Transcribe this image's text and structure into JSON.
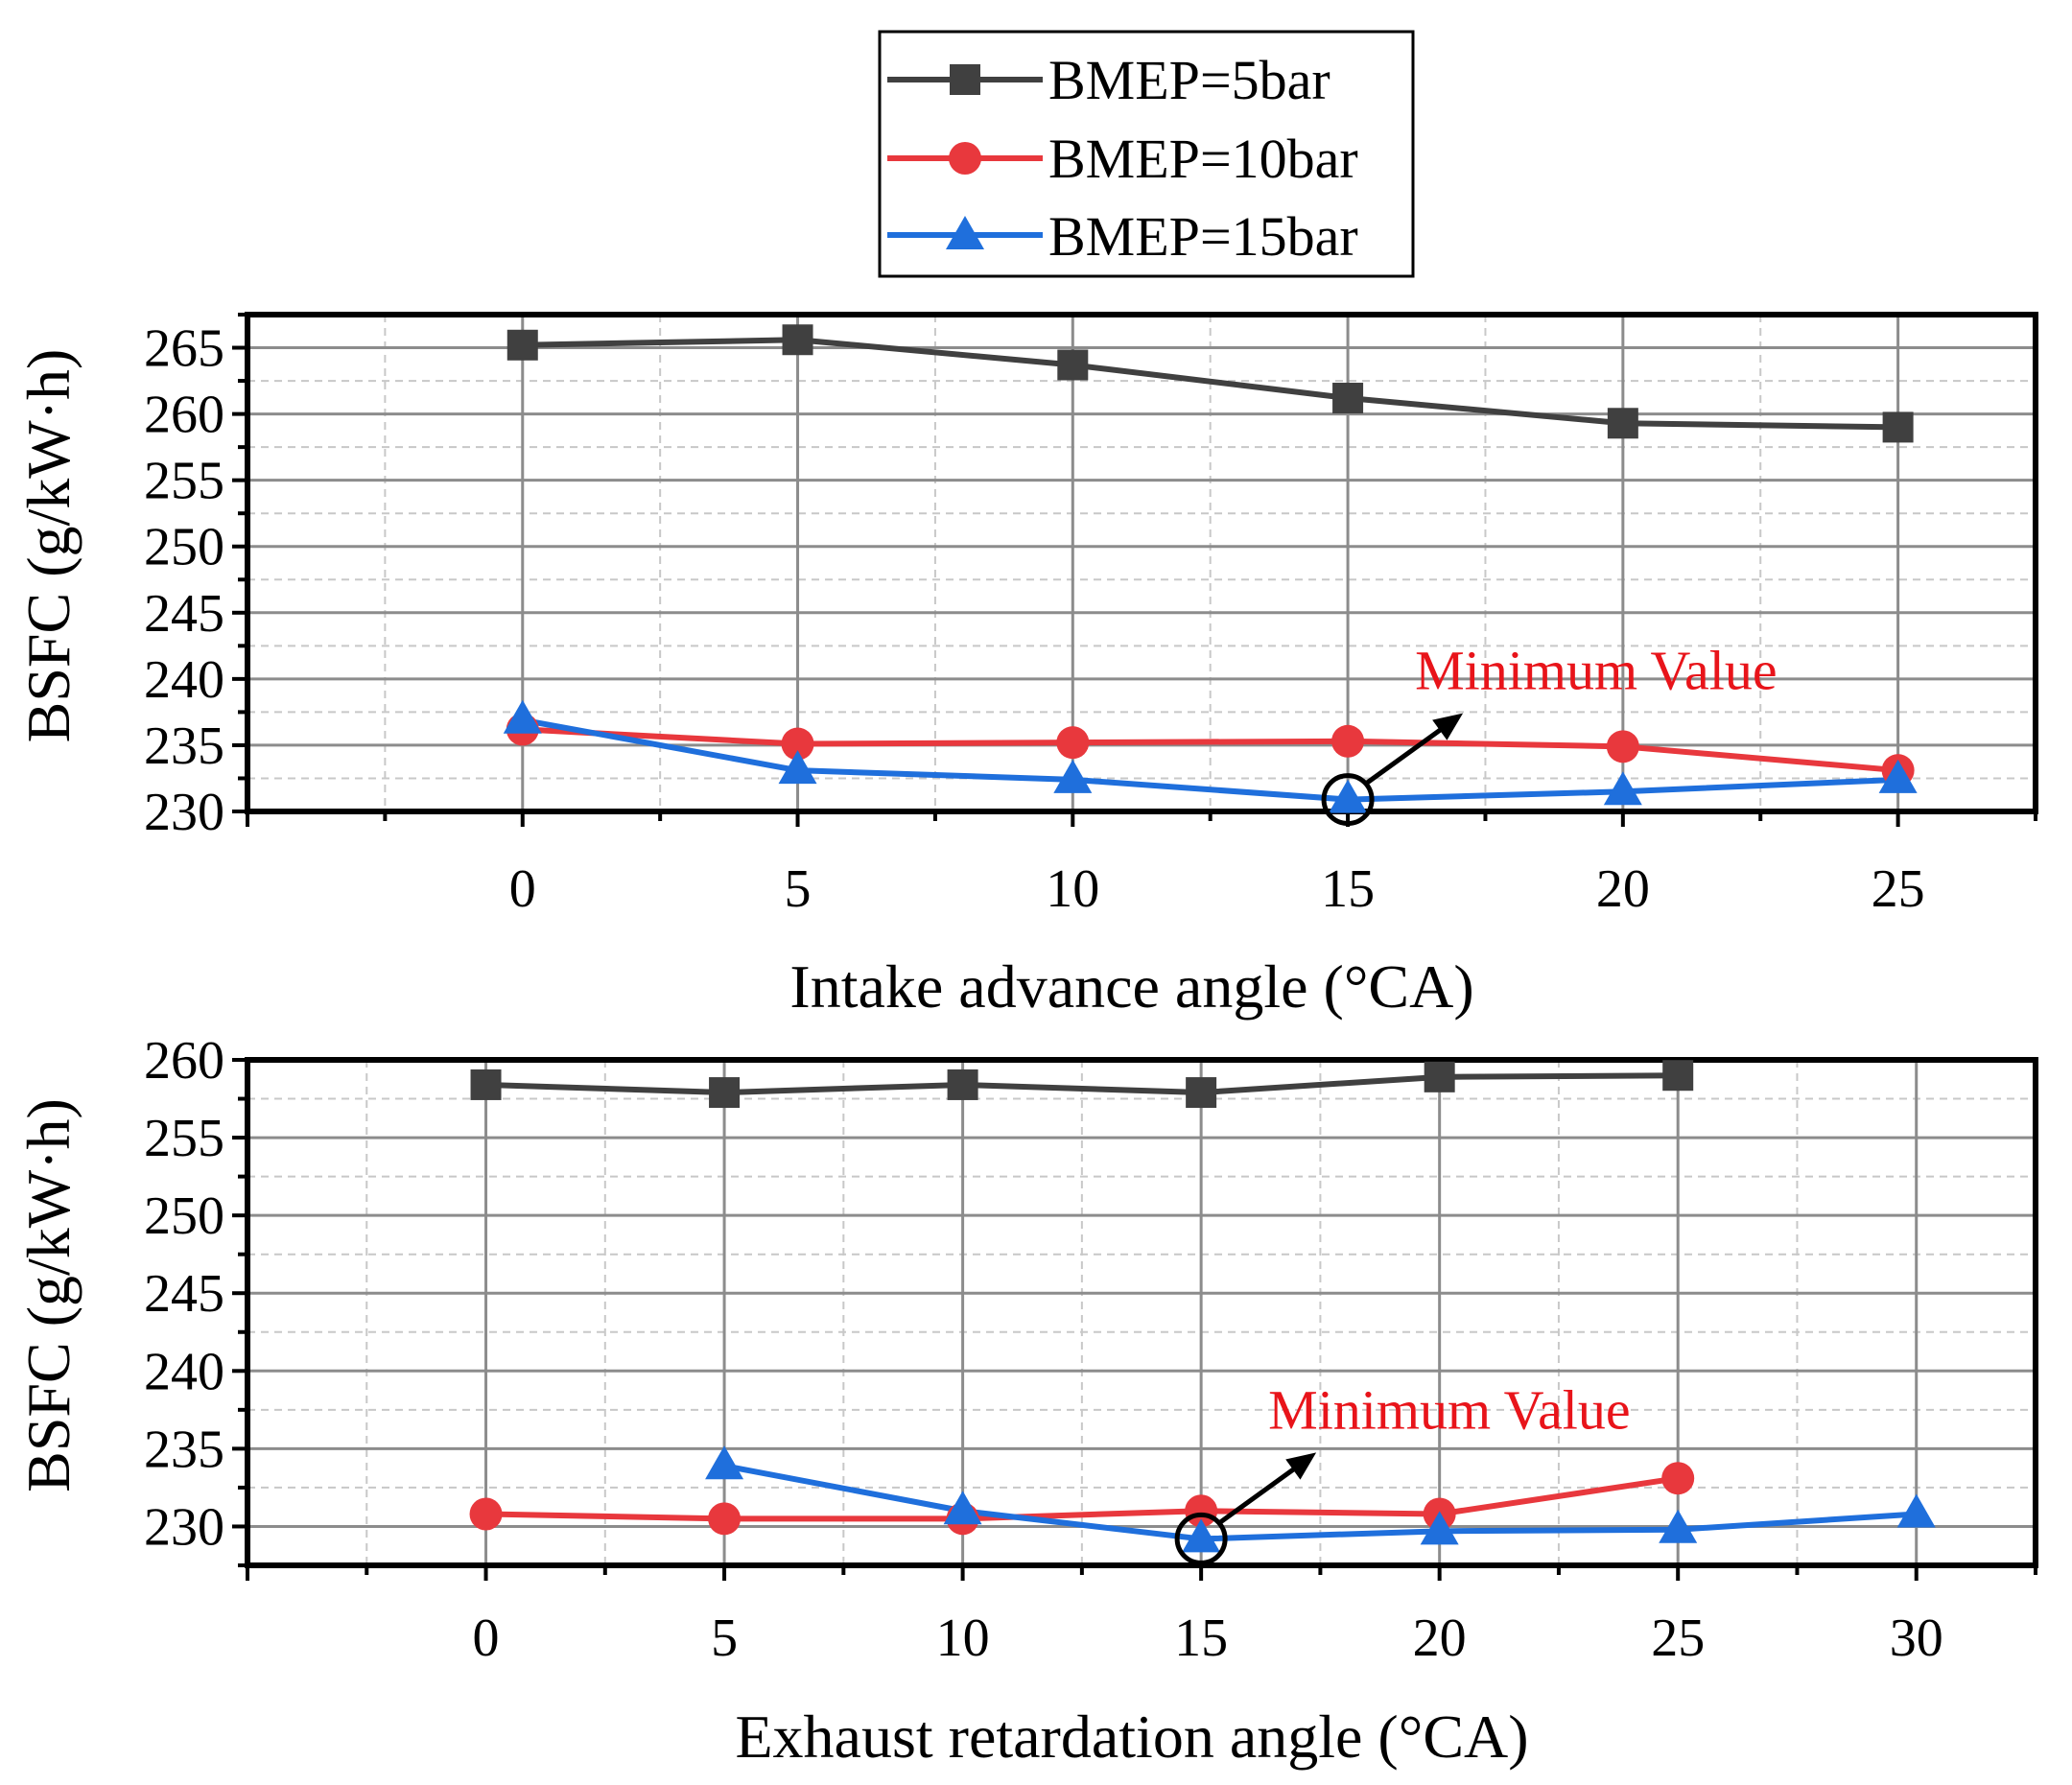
{
  "legend": [
    {
      "label": "BMEP=5bar",
      "color": "#404040",
      "marker": "square"
    },
    {
      "label": "BMEP=10bar",
      "color": "#e8383d",
      "marker": "circle"
    },
    {
      "label": "BMEP=15bar",
      "color": "#1f6fdc",
      "marker": "triangle"
    }
  ],
  "chart_data": [
    {
      "type": "line",
      "xlabel": "Intake advance angle (°CA)",
      "ylabel": "BSFC (g/kW·h)",
      "xlim": [
        -5,
        27.5
      ],
      "ylim": [
        230,
        267.5
      ],
      "xticks": [
        0,
        5,
        10,
        15,
        20,
        25
      ],
      "yticks": [
        230,
        235,
        240,
        245,
        250,
        255,
        260,
        265
      ],
      "grid": true,
      "series": [
        {
          "name": "BMEP=5bar",
          "x": [
            0,
            5,
            10,
            15,
            20,
            25
          ],
          "y": [
            265.2,
            265.6,
            263.7,
            261.2,
            259.3,
            259.0
          ]
        },
        {
          "name": "BMEP=10bar",
          "x": [
            0,
            5,
            10,
            15,
            20,
            25
          ],
          "y": [
            236.2,
            235.1,
            235.2,
            235.3,
            234.9,
            233.1
          ]
        },
        {
          "name": "BMEP=15bar",
          "x": [
            0,
            5,
            10,
            15,
            20,
            25
          ],
          "y": [
            236.9,
            233.1,
            232.4,
            230.9,
            231.5,
            232.4
          ]
        }
      ],
      "annotation": {
        "text": "Minimum Value",
        "color": "#e8141a",
        "x": 15,
        "y": 230.9
      }
    },
    {
      "type": "line",
      "xlabel": "Exhaust retardation angle (°CA)",
      "ylabel": "BSFC (g/kW·h)",
      "xlim": [
        -5,
        32.5
      ],
      "ylim": [
        227.5,
        260
      ],
      "xticks": [
        0,
        5,
        10,
        15,
        20,
        25,
        30
      ],
      "yticks": [
        230,
        235,
        240,
        245,
        250,
        255,
        260
      ],
      "grid": true,
      "series": [
        {
          "name": "BMEP=5bar",
          "x": [
            0,
            5,
            10,
            15,
            20,
            25
          ],
          "y": [
            258.4,
            257.9,
            258.4,
            257.9,
            258.9,
            259.0
          ]
        },
        {
          "name": "BMEP=10bar",
          "x": [
            0,
            5,
            10,
            15,
            20,
            25
          ],
          "y": [
            230.8,
            230.5,
            230.5,
            231.0,
            230.8,
            233.1
          ]
        },
        {
          "name": "BMEP=15bar",
          "x": [
            5,
            10,
            15,
            20,
            25,
            30
          ],
          "y": [
            233.9,
            231.0,
            229.2,
            229.7,
            229.8,
            230.8
          ]
        }
      ],
      "annotation": {
        "text": "Minimum Value",
        "color": "#e8141a",
        "x": 15,
        "y": 229.2
      }
    }
  ]
}
